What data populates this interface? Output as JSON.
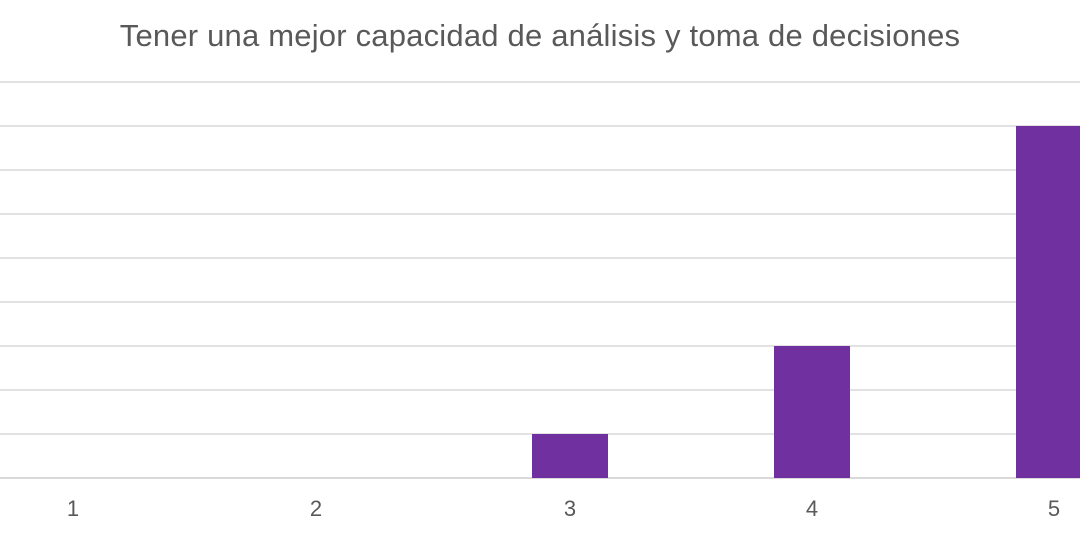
{
  "chart_data": {
    "type": "bar",
    "title": "Tener una mejor capacidad de análisis y toma de decisiones",
    "categories": [
      "1",
      "2",
      "3",
      "4",
      "5"
    ],
    "values": [
      0,
      0,
      1,
      3,
      8
    ],
    "xlabel": "",
    "ylabel": "",
    "ylim": [
      0,
      9
    ],
    "grid": true,
    "legend": "none",
    "colors": {
      "bar": "#7030a0",
      "grid": "#d9d9d9",
      "text": "#595959"
    }
  }
}
